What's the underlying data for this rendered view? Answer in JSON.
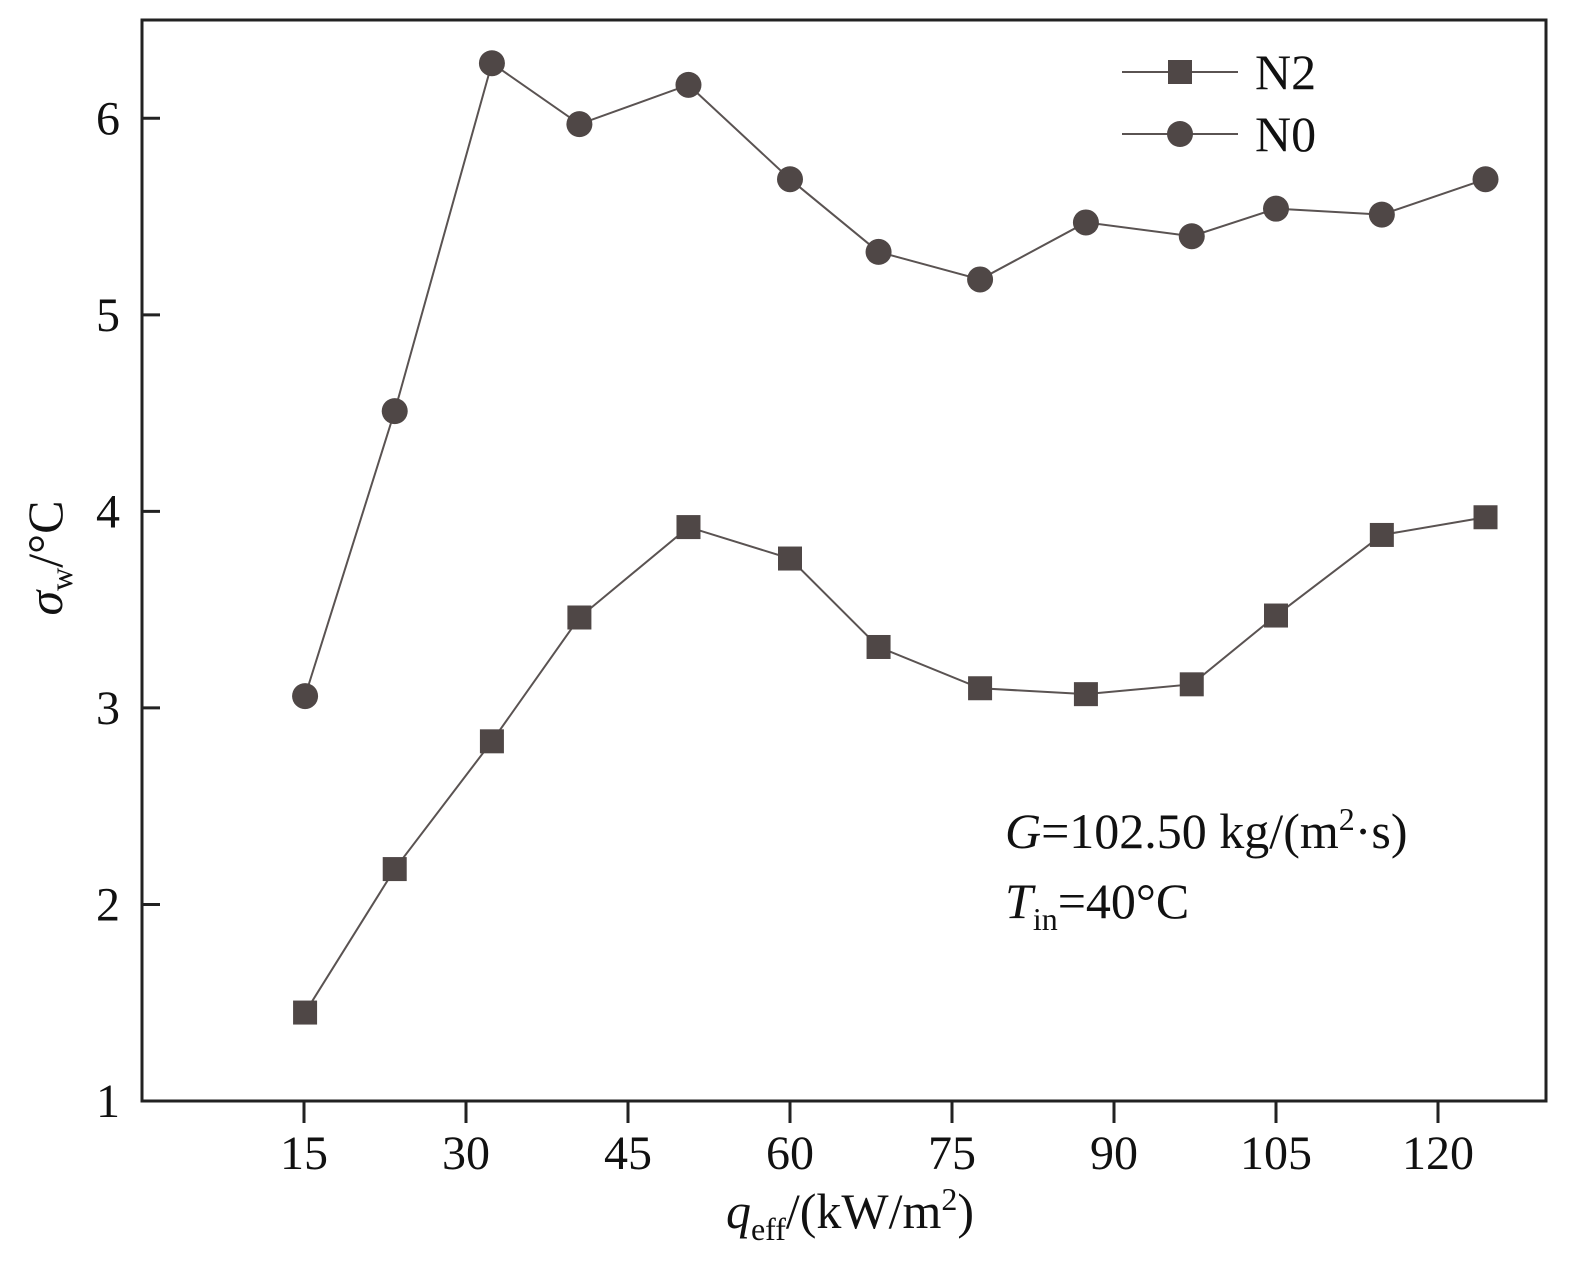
{
  "chart_data": {
    "type": "line",
    "xlim": [
      0,
      130
    ],
    "ylim": [
      1,
      6.5
    ],
    "x_ticks": [
      15,
      30,
      45,
      60,
      75,
      90,
      105,
      120
    ],
    "y_ticks": [
      1,
      2,
      3,
      4,
      5,
      6
    ],
    "xlabel": {
      "symbol": "q",
      "sub": "eff",
      "rest": "/(kW/m",
      "sup": "2",
      "close": ")"
    },
    "ylabel": {
      "symbol": "σ",
      "sub": "w",
      "rest": "/°C"
    },
    "annotations": [
      {
        "symbol": "G",
        "text": "=102.50 kg/(m",
        "sup": "2",
        "tail": "·s)"
      },
      {
        "symbol": "T",
        "sub": "in",
        "text": "=40°C"
      }
    ],
    "legend_position": "top-right",
    "grid": false,
    "series": [
      {
        "name": "N2",
        "marker": "square",
        "color": "#4f4746",
        "x": [
          15.1,
          23.4,
          32.4,
          40.5,
          50.6,
          60.0,
          68.2,
          77.6,
          87.4,
          97.2,
          105.0,
          114.8,
          124.4
        ],
        "y": [
          1.45,
          2.18,
          2.83,
          3.46,
          3.92,
          3.76,
          3.31,
          3.1,
          3.07,
          3.12,
          3.47,
          3.88,
          3.97
        ]
      },
      {
        "name": "N0",
        "marker": "circle",
        "color": "#4f4746",
        "x": [
          15.1,
          23.4,
          32.4,
          40.5,
          50.6,
          60.0,
          68.2,
          77.6,
          87.4,
          97.2,
          105.0,
          114.8,
          124.4
        ],
        "y": [
          3.06,
          4.51,
          6.28,
          5.97,
          6.17,
          5.69,
          5.32,
          5.18,
          5.47,
          5.4,
          5.54,
          5.51,
          5.69
        ]
      }
    ]
  }
}
